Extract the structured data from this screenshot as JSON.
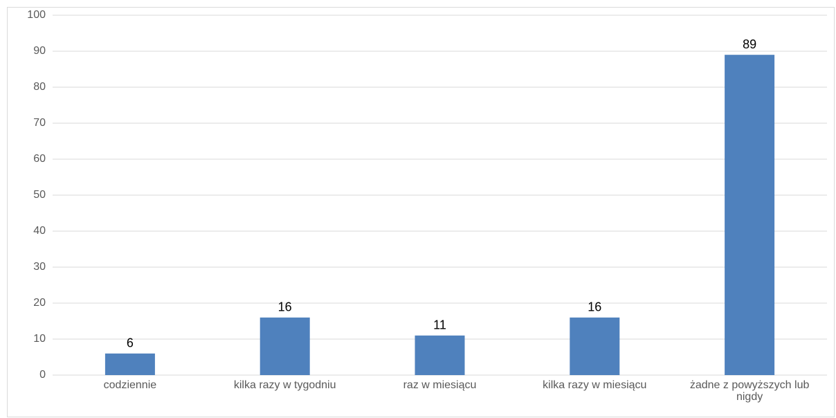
{
  "chart_data": {
    "type": "bar",
    "categories": [
      "codziennie",
      "kilka razy w tygodniu",
      "raz w miesiącu",
      "kilka razy w miesiącu",
      "żadne z powyższych lub nigdy"
    ],
    "values": [
      6,
      16,
      11,
      16,
      89
    ],
    "color": "#4f81bd",
    "ylim": [
      0,
      100
    ],
    "yticks": [
      0,
      10,
      20,
      30,
      40,
      50,
      60,
      70,
      80,
      90,
      100
    ],
    "grid": true
  }
}
